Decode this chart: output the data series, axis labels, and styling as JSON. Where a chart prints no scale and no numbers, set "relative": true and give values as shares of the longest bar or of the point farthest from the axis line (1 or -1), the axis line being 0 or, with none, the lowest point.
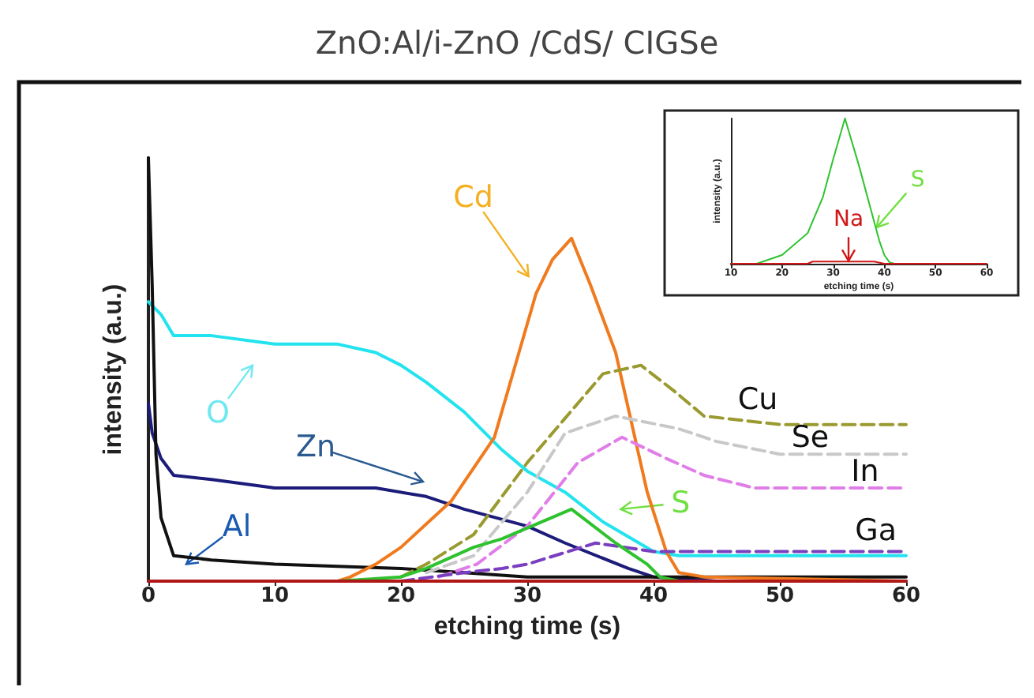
{
  "chart_data": [
    {
      "type": "line",
      "title": "ZnO:Al/i-ZnO /CdS/ CIGSe",
      "xlabel": "etching time (s)",
      "ylabel": "intensity (a.u.)",
      "relative": true,
      "xlim": [
        0,
        60
      ],
      "xticks": [
        0,
        10,
        20,
        30,
        40,
        50,
        60
      ],
      "marker": "none",
      "series": [
        {
          "color": "#22e3ee",
          "x": [
            0,
            1,
            2,
            5,
            10,
            15,
            18,
            20,
            22,
            25,
            28,
            30,
            33,
            36,
            40,
            42,
            50,
            60
          ],
          "values": [
            0.66,
            0.63,
            0.58,
            0.58,
            0.56,
            0.56,
            0.54,
            0.51,
            0.47,
            0.4,
            0.31,
            0.26,
            0.21,
            0.14,
            0.07,
            0.06,
            0.06,
            0.06
          ]
        },
        {
          "color": "#1c1c7a",
          "x": [
            0,
            0.3,
            1,
            2,
            5,
            10,
            18,
            22,
            25,
            30,
            33,
            38,
            40,
            45,
            60
          ],
          "values": [
            0.42,
            0.35,
            0.29,
            0.25,
            0.24,
            0.22,
            0.22,
            0.2,
            0.17,
            0.13,
            0.09,
            0.03,
            0.01,
            0,
            0
          ]
        },
        {
          "color": "#111111",
          "x": [
            0,
            0.3,
            0.6,
            1,
            2,
            5,
            10,
            20,
            25,
            30,
            60
          ],
          "values": [
            1,
            0.7,
            0.3,
            0.15,
            0.06,
            0.05,
            0.04,
            0.03,
            0.02,
            0.01,
            0.01
          ]
        },
        {
          "color": "#f07a1e",
          "x": [
            15,
            16,
            18,
            20,
            24,
            27.4,
            30.7,
            32,
            33.5,
            35,
            37,
            39.5,
            41,
            42,
            44,
            60
          ],
          "values": [
            0,
            0.01,
            0.04,
            0.08,
            0.19,
            0.34,
            0.68,
            0.76,
            0.81,
            0.7,
            0.54,
            0.21,
            0.07,
            0.02,
            0.01,
            0
          ]
        },
        {
          "color": "#9a9a30",
          "line_style": "dashed",
          "x": [
            20,
            22,
            25.75,
            30,
            36,
            39,
            41.6,
            44,
            50,
            60
          ],
          "values": [
            0.01,
            0.04,
            0.11,
            0.28,
            0.49,
            0.51,
            0.45,
            0.39,
            0.37,
            0.37
          ]
        },
        {
          "color": "#c8c8c8",
          "line_style": "dashed",
          "x": [
            22,
            25.75,
            30,
            33,
            37,
            42,
            45,
            50,
            60
          ],
          "values": [
            0.02,
            0.06,
            0.21,
            0.35,
            0.39,
            0.36,
            0.33,
            0.3,
            0.3
          ]
        },
        {
          "color": "#e07ee8",
          "line_style": "dashed",
          "x": [
            23,
            26,
            30,
            34,
            37.5,
            41,
            44,
            48,
            60
          ],
          "values": [
            0.01,
            0.04,
            0.13,
            0.28,
            0.34,
            0.29,
            0.25,
            0.22,
            0.22
          ]
        },
        {
          "color": "#7a3fc0",
          "line_style": "dashed",
          "x": [
            20,
            25,
            28,
            30,
            35.4,
            40,
            60
          ],
          "values": [
            0,
            0.02,
            0.03,
            0.04,
            0.09,
            0.07,
            0.07
          ]
        },
        {
          "color": "#2fc22f",
          "x": [
            15,
            20,
            22,
            25.75,
            28,
            33.5,
            37,
            39.5,
            40.5,
            42
          ],
          "values": [
            0,
            0.01,
            0.03,
            0.08,
            0.1,
            0.17,
            0.09,
            0.04,
            0.01,
            0
          ]
        },
        {
          "color": "#b01818",
          "x": [
            0,
            60
          ],
          "values": [
            0,
            0
          ]
        }
      ],
      "annotations": [
        "Cd",
        "O",
        "Zn",
        "Al",
        "S",
        "Cu",
        "Se",
        "In",
        "Ga"
      ]
    },
    {
      "type": "line",
      "xlabel": "etching time (s)",
      "ylabel": "intensity (a.u.)",
      "relative": true,
      "xlim": [
        10,
        60
      ],
      "xticks": [
        10,
        20,
        30,
        40,
        50,
        60
      ],
      "marker": "none",
      "series": [
        {
          "color": "#2fc22f",
          "x": [
            10,
            15,
            20,
            25,
            28,
            30,
            32.3,
            35,
            37,
            39,
            40,
            41,
            42,
            60
          ],
          "values": [
            0,
            0,
            0.06,
            0.21,
            0.46,
            0.72,
            1,
            0.68,
            0.42,
            0.16,
            0.06,
            0.01,
            0,
            0
          ]
        },
        {
          "color": "#d01818",
          "x": [
            10,
            25,
            26,
            38,
            40,
            60
          ],
          "values": [
            0,
            0,
            0.015,
            0.015,
            0,
            0
          ]
        }
      ],
      "annotations": [
        "Na",
        "S"
      ]
    }
  ]
}
